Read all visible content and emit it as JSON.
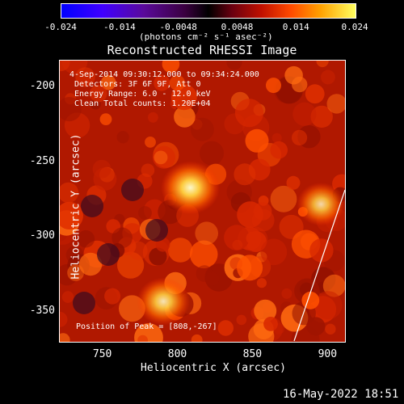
{
  "colorbar": {
    "ticks": [
      "-0.024",
      "-0.014",
      "-0.0048",
      "0.0048",
      "0.014",
      "0.024"
    ],
    "unit_label": "(photons cm⁻² s⁻¹ asec⁻²)"
  },
  "title": "Reconstructed RHESSI Image",
  "annotations": {
    "time": "4-Sep-2014 09:30:12.000 to 09:34:24.000",
    "detectors": "Detectors: 3F 6F 9F, Att 0",
    "energy": "Energy Range: 6.0 - 12.0 keV",
    "clean": "Clean    Total counts: 1.20E+04",
    "peak": "Position of Peak = [808,-267]"
  },
  "axes": {
    "x_label": "Heliocentric X (arcsec)",
    "y_label": "Heliocentric Y (arcsec)",
    "x_ticks": [
      "750",
      "800",
      "850",
      "900"
    ],
    "y_ticks": [
      "-200",
      "-250",
      "-300",
      "-350"
    ]
  },
  "footer_date": "16-May-2022 18:51",
  "chart_data": {
    "type": "heatmap",
    "title": "Reconstructed RHESSI Image",
    "xlabel": "Heliocentric X (arcsec)",
    "ylabel": "Heliocentric Y (arcsec)",
    "xlim": [
      721,
      911
    ],
    "ylim": [
      -370,
      -182
    ],
    "colorbar_range": [
      -0.024,
      0.024
    ],
    "peak": [
      808,
      -267
    ],
    "sources": [
      {
        "x": 808,
        "y": -267,
        "intensity": 0.022
      },
      {
        "x": 790,
        "y": -343,
        "intensity": 0.017
      },
      {
        "x": 895,
        "y": -278,
        "intensity": 0.013
      }
    ]
  }
}
